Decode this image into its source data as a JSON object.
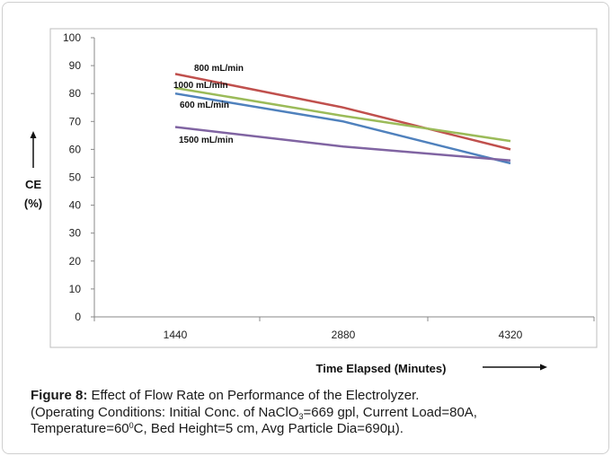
{
  "chart_data": {
    "type": "line",
    "categories": [
      "1440",
      "2880",
      "4320"
    ],
    "series": [
      {
        "name": "800 mL/min",
        "values": [
          87,
          75,
          60
        ],
        "color": "#c0504d"
      },
      {
        "name": "1000 mL/min",
        "values": [
          82,
          72,
          63
        ],
        "color": "#9bbb59"
      },
      {
        "name": "600 mL/min",
        "values": [
          80,
          70,
          55
        ],
        "color": "#4f81bd"
      },
      {
        "name": "1500 mL/min",
        "values": [
          68,
          61,
          56
        ],
        "color": "#8064a2"
      }
    ],
    "ylim": [
      0,
      100
    ],
    "yticks": [
      "0",
      "10",
      "20",
      "30",
      "40",
      "50",
      "60",
      "70",
      "80",
      "90",
      "100"
    ],
    "ylabel": [
      "CE",
      "(%)"
    ],
    "xlabel": "Time Elapsed (Minutes)",
    "grid": false
  },
  "caption": {
    "figure_label": "Figure 8:",
    "line1": "Effect of Flow Rate on Performance of the Electrolyzer.",
    "line2_pre": "(Operating Conditions: Initial Conc. of NaClO",
    "line2_sub": "3",
    "line2_post": "=669 gpl, Current Load=80A,",
    "line3_pre": "Temperature=60",
    "line3_sup": "0",
    "line3_post": "C, Bed Height=5 cm, Avg Particle Dia=690µ)."
  }
}
